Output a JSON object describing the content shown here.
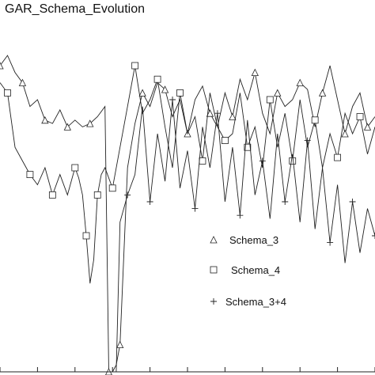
{
  "chart_data": {
    "type": "line",
    "title": "GAR_Schema_Evolution",
    "xlabel": "",
    "ylabel": "",
    "xlim": [
      0,
      100
    ],
    "ylim": [
      0,
      100
    ],
    "grid": false,
    "legend_placement": "bottom-right",
    "series": [
      {
        "name": "Schema_3",
        "marker": "triangle",
        "color": "#222222",
        "x": [
          0,
          2,
          4,
          6,
          8,
          10,
          12,
          14,
          16,
          18,
          20,
          22,
          24,
          26,
          28,
          29,
          30,
          31,
          32,
          34,
          36,
          38,
          40,
          42,
          44,
          46,
          48,
          50,
          52,
          54,
          56,
          58,
          60,
          62,
          64,
          66,
          68,
          70,
          72,
          74,
          76,
          78,
          80,
          82,
          84,
          86,
          88,
          90,
          92,
          94,
          96,
          98,
          100
        ],
        "y": [
          90,
          93,
          88,
          85,
          78,
          80,
          74,
          73,
          77,
          72,
          74,
          72,
          73,
          75,
          78,
          0,
          0,
          2,
          8,
          60,
          73,
          82,
          78,
          85,
          83,
          75,
          80,
          70,
          80,
          84,
          76,
          72,
          82,
          75,
          86,
          80,
          88,
          76,
          70,
          82,
          78,
          80,
          85,
          83,
          72,
          82,
          90,
          80,
          70,
          78,
          82,
          72,
          75
        ]
      },
      {
        "name": "Schema_4",
        "marker": "square",
        "color": "#222222",
        "x": [
          0,
          2,
          4,
          6,
          8,
          10,
          12,
          14,
          16,
          18,
          20,
          21,
          22,
          23,
          24,
          25,
          26,
          27,
          28,
          30,
          32,
          34,
          36,
          38,
          40,
          42,
          44,
          46,
          48,
          50,
          52,
          54,
          56,
          58,
          60,
          62,
          64,
          66,
          68,
          70,
          72,
          74,
          76,
          78,
          80,
          82,
          84,
          86,
          88,
          90,
          92,
          94,
          96,
          98,
          100
        ],
        "y": [
          85,
          82,
          66,
          62,
          58,
          55,
          60,
          52,
          58,
          52,
          60,
          57,
          52,
          40,
          26,
          33,
          52,
          58,
          60,
          54,
          66,
          78,
          90,
          76,
          80,
          86,
          72,
          60,
          82,
          70,
          75,
          62,
          82,
          72,
          68,
          70,
          82,
          66,
          72,
          60,
          80,
          66,
          76,
          62,
          80,
          66,
          74,
          60,
          70,
          63,
          76,
          70,
          75,
          64,
          72
        ]
      },
      {
        "name": "Schema_3+4",
        "marker": "plus",
        "color": "#222222",
        "x": [
          31,
          32,
          34,
          36,
          38,
          40,
          42,
          44,
          46,
          48,
          50,
          52,
          54,
          56,
          58,
          60,
          62,
          64,
          66,
          68,
          70,
          72,
          74,
          76,
          78,
          80,
          82,
          84,
          86,
          88,
          90,
          92,
          94,
          96,
          98,
          100
        ],
        "y": [
          0,
          44,
          52,
          58,
          78,
          50,
          70,
          56,
          80,
          54,
          65,
          48,
          72,
          60,
          76,
          50,
          66,
          46,
          74,
          52,
          62,
          45,
          70,
          50,
          64,
          44,
          68,
          42,
          60,
          38,
          55,
          32,
          50,
          35,
          48,
          40
        ]
      }
    ],
    "legend": [
      "Schema_3",
      "Schema_4",
      "Schema_3+4"
    ]
  }
}
